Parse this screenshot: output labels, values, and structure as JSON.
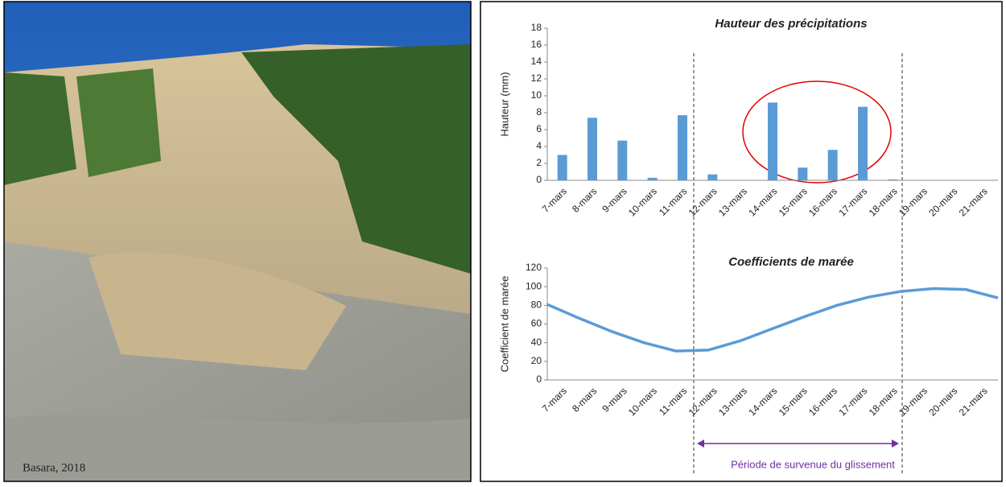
{
  "photo": {
    "caption": "Basara, 2018"
  },
  "chart_data": [
    {
      "type": "bar",
      "title": "Hauteur des précipitations",
      "y_label": "Hauteur (mm)",
      "categories": [
        "7-mars",
        "8-mars",
        "9-mars",
        "10-mars",
        "11-mars",
        "12-mars",
        "13-mars",
        "14-mars",
        "15-mars",
        "16-mars",
        "17-mars",
        "18-mars",
        "19-mars",
        "20-mars",
        "21-mars"
      ],
      "values": [
        3.0,
        7.4,
        4.7,
        0.3,
        7.7,
        0.7,
        0,
        9.2,
        1.5,
        3.6,
        8.7,
        0.1,
        0,
        0,
        0
      ],
      "color": "#5b9bd5",
      "ylim": [
        0,
        18
      ],
      "yticks": [
        0,
        2,
        4,
        6,
        8,
        10,
        12,
        14,
        16,
        18
      ]
    },
    {
      "type": "line",
      "title": "Coefficients de marée",
      "y_label": "Coefficient de marée",
      "categories": [
        "7-mars",
        "8-mars",
        "9-mars",
        "10-mars",
        "11-mars",
        "12-mars",
        "13-mars",
        "14-mars",
        "15-mars",
        "16-mars",
        "17-mars",
        "18-mars",
        "19-mars",
        "20-mars",
        "21-mars"
      ],
      "values": [
        81,
        66,
        52,
        40,
        31,
        32,
        42,
        55,
        68,
        80,
        89,
        95,
        98,
        97,
        88
      ],
      "color": "#5b9bd5",
      "ylim": [
        0,
        120
      ],
      "yticks": [
        0,
        20,
        40,
        60,
        80,
        100,
        120
      ],
      "annotation": "Période de survenue du glissement"
    }
  ]
}
